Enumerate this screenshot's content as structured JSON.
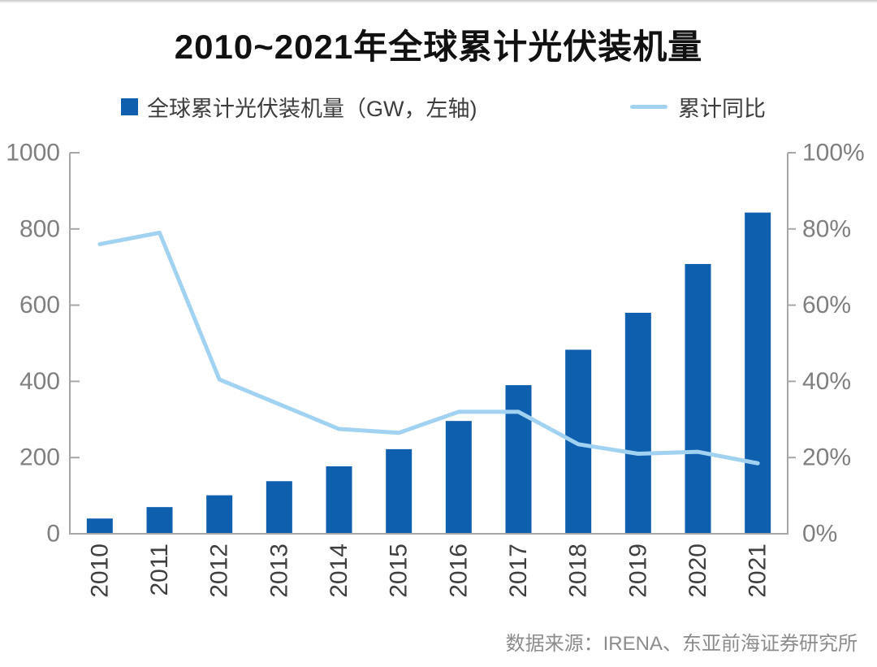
{
  "title": {
    "text": "2010~2021年全球累计光伏装机量"
  },
  "legend": {
    "bar_series": {
      "label": "全球累计光伏装机量（GW，左轴)",
      "marker": "square-icon"
    },
    "line_series": {
      "label": "累计同比",
      "marker": "line-icon"
    }
  },
  "source": {
    "text": "数据来源：IRENA、东亚前海证券研究所"
  },
  "colors": {
    "bar": "#0e5fae",
    "line": "#a2d2f2",
    "axis": "#a6a6a6",
    "axis_tick_label": "#7f7f7f",
    "year_label": "#3f3f3f",
    "title": "#111111",
    "legend_text": "#3d3d3d",
    "source_text": "#8c8c8c",
    "background": "#ffffff"
  },
  "chart_data": {
    "type": "bar",
    "subtype": "combo-bar-line",
    "title": "2010~2021年全球累计光伏装机量",
    "categories": [
      "2010",
      "2011",
      "2012",
      "2013",
      "2014",
      "2015",
      "2016",
      "2017",
      "2018",
      "2019",
      "2020",
      "2021"
    ],
    "series": [
      {
        "name": "全球累计光伏装机量（GW，左轴)",
        "type": "bar",
        "axis": "left",
        "unit": "GW",
        "values": [
          40,
          70,
          101,
          138,
          177,
          222,
          296,
          390,
          483,
          580,
          708,
          843
        ]
      },
      {
        "name": "累计同比",
        "type": "line",
        "axis": "right",
        "unit": "%",
        "values": [
          76,
          79,
          40.5,
          34,
          27.5,
          26.5,
          32,
          32,
          23.5,
          21,
          21.5,
          18.5
        ]
      }
    ],
    "left_axis": {
      "min": 0,
      "max": 1000,
      "step": 200,
      "tick_labels": [
        "0",
        "200",
        "400",
        "600",
        "800",
        "1000"
      ]
    },
    "right_axis": {
      "min": 0,
      "max": 100,
      "step": 20,
      "tick_labels": [
        "0%",
        "20%",
        "40%",
        "60%",
        "80%",
        "100%"
      ]
    },
    "x_tick_rotation": -90,
    "grid": false,
    "legend_position": "top"
  }
}
